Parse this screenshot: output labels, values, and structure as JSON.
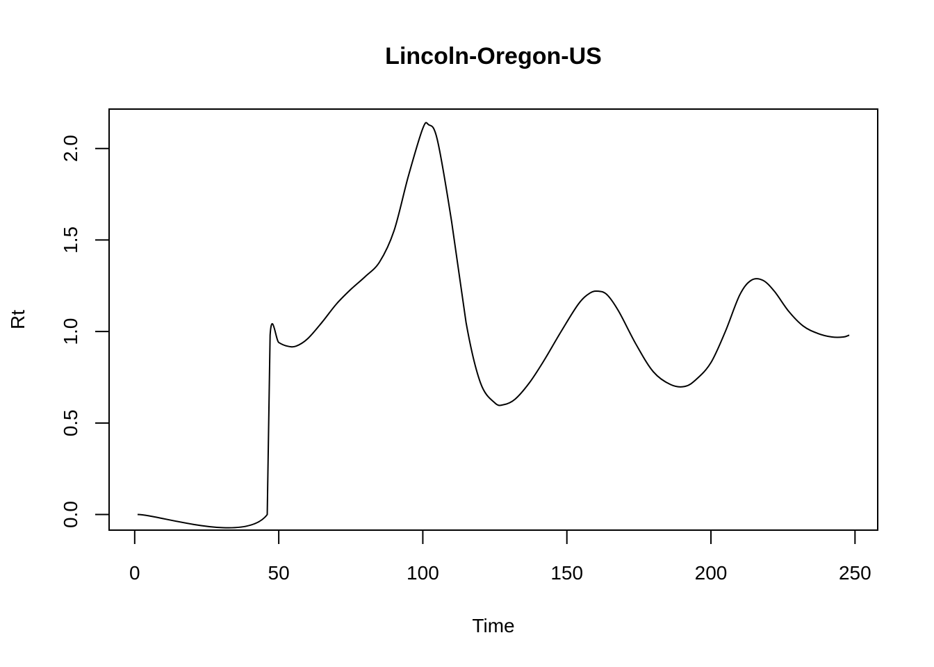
{
  "chart_data": {
    "type": "line",
    "title": "Lincoln-Oregon-US",
    "xlabel": "Time",
    "ylabel": "Rt",
    "xlim": [
      1,
      248
    ],
    "ylim": [
      0,
      2.13
    ],
    "x_ticks": [
      0,
      50,
      100,
      150,
      200,
      250
    ],
    "x_tick_labels": [
      "0",
      "50",
      "100",
      "150",
      "200",
      "250"
    ],
    "y_ticks": [
      0,
      0.5,
      1,
      1.5,
      2
    ],
    "y_tick_labels": [
      "0.0",
      "0.5",
      "1.0",
      "1.5",
      "2.0"
    ],
    "grid": false,
    "legend": "none",
    "line_color": "#000000",
    "series": [
      {
        "x": [
          1,
          46,
          47,
          50,
          53,
          56,
          60,
          65,
          70,
          75,
          80,
          85,
          90,
          95,
          100,
          102,
          105,
          110,
          115,
          120,
          125,
          128,
          132,
          137,
          142,
          148,
          154,
          158,
          161,
          164,
          168,
          174,
          180,
          186,
          191,
          195,
          200,
          205,
          210,
          214,
          218,
          222,
          227,
          232,
          237,
          242,
          246,
          248
        ],
        "values": [
          0,
          0,
          0.98,
          0.94,
          0.92,
          0.92,
          0.96,
          1.05,
          1.15,
          1.23,
          1.3,
          1.38,
          1.55,
          1.85,
          2.11,
          2.13,
          2.05,
          1.6,
          1.05,
          0.72,
          0.61,
          0.6,
          0.63,
          0.72,
          0.84,
          1.0,
          1.15,
          1.21,
          1.22,
          1.2,
          1.11,
          0.93,
          0.78,
          0.71,
          0.7,
          0.74,
          0.83,
          1.0,
          1.2,
          1.28,
          1.28,
          1.22,
          1.11,
          1.03,
          0.99,
          0.97,
          0.97,
          0.98
        ]
      }
    ]
  }
}
